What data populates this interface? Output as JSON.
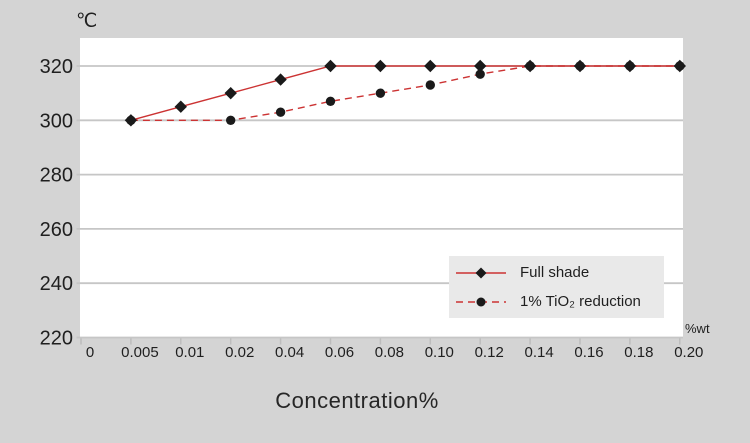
{
  "colors": {
    "page_bg": "#d4d4d4",
    "plot_bg": "#ffffff",
    "grid": "#c6c6c6",
    "tick": "#bdbdbd",
    "legend_bg": "#e9e9e9",
    "text": "#1f1f1f",
    "line_red": "#cc3333",
    "marker_black": "#1a1a1a"
  },
  "chart_data": {
    "type": "line",
    "title": "",
    "xlabel": "Concentration%",
    "ylabel": "",
    "y_unit": "℃",
    "x_unit": "%wt",
    "grid": true,
    "legend_position": "inside-right",
    "categories": [
      "0",
      "0.005",
      "0.01",
      "0.02",
      "0.04",
      "0.06",
      "0.08",
      "0.10",
      "0.12",
      "0.14",
      "0.16",
      "0.18",
      "0.20"
    ],
    "y_ticks": [
      220,
      240,
      260,
      280,
      300,
      320
    ],
    "ylim": [
      220,
      330
    ],
    "series": [
      {
        "name": "Full shade",
        "line": "solid",
        "marker": "diamond",
        "color": "#cc3333",
        "marker_color": "#1a1a1a",
        "values": [
          null,
          300,
          305,
          310,
          315,
          320,
          320,
          320,
          320,
          320,
          320,
          320,
          320
        ]
      },
      {
        "name": "1% TiO₂ reduction",
        "line": "dashed",
        "marker": "circle",
        "color": "#cc3333",
        "marker_color": "#1a1a1a",
        "values": [
          null,
          300,
          null,
          300,
          303,
          307,
          310,
          313,
          317,
          320,
          320,
          320,
          320
        ]
      }
    ]
  }
}
